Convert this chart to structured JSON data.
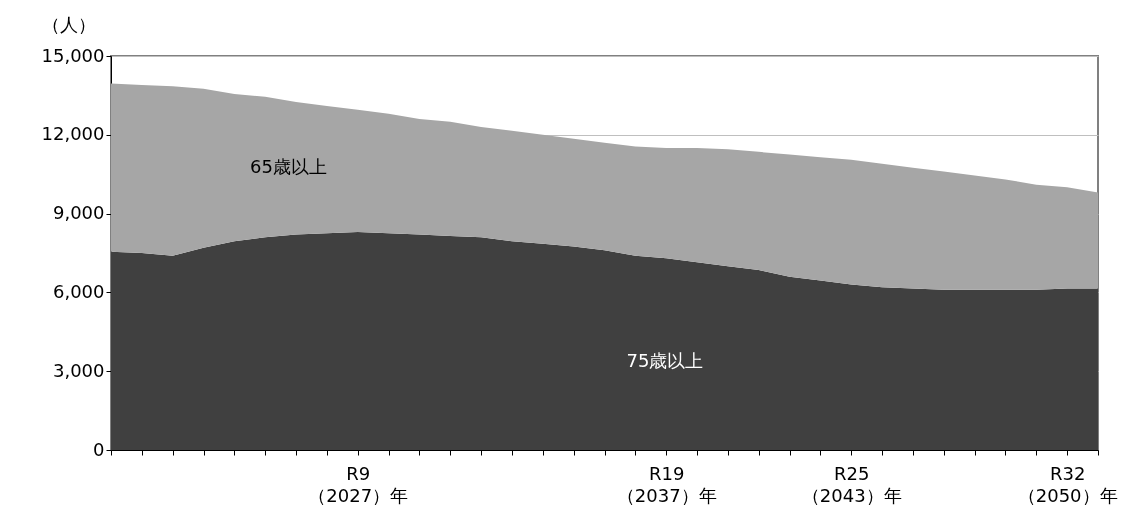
{
  "chart_data": {
    "type": "area",
    "stacked": true,
    "ylabel": "（人）",
    "categories": [
      null,
      null,
      null,
      null,
      null,
      null,
      null,
      null,
      "R9\n（2027）年",
      null,
      null,
      null,
      null,
      null,
      null,
      null,
      null,
      null,
      "R19\n（2037）年",
      null,
      null,
      null,
      null,
      null,
      "R25\n（2043）年",
      null,
      null,
      null,
      null,
      null,
      null,
      "R32\n（2050）年",
      null
    ],
    "ylim": [
      0,
      15000
    ],
    "yticks": [
      0,
      {
        "value": 3000,
        "label": "3,000"
      },
      {
        "value": 6000,
        "label": "6,000"
      },
      {
        "value": 9000,
        "label": "9,000"
      },
      {
        "value": 12000,
        "label": "12,000"
      },
      {
        "value": 15000,
        "label": "15,000"
      }
    ],
    "grid": "y",
    "series": [
      {
        "name": "75歳以上",
        "color": "#404040",
        "values": [
          7550,
          7500,
          7400,
          7700,
          7950,
          8100,
          8200,
          8250,
          8300,
          8250,
          8200,
          8150,
          8100,
          7950,
          7850,
          7750,
          7600,
          7400,
          7300,
          7150,
          7000,
          6850,
          6600,
          6450,
          6300,
          6200,
          6150,
          6100,
          6100,
          6100,
          6100,
          6150,
          6150
        ]
      },
      {
        "name": "65歳以上",
        "color": "#a6a6a6",
        "values": [
          6400,
          6400,
          6450,
          6050,
          5600,
          5350,
          5050,
          4850,
          4650,
          4550,
          4400,
          4350,
          4200,
          4200,
          4150,
          4100,
          4100,
          4150,
          4200,
          4350,
          4450,
          4500,
          4650,
          4700,
          4750,
          4700,
          4600,
          4500,
          4350,
          4200,
          4000,
          3850,
          3650
        ]
      }
    ]
  }
}
